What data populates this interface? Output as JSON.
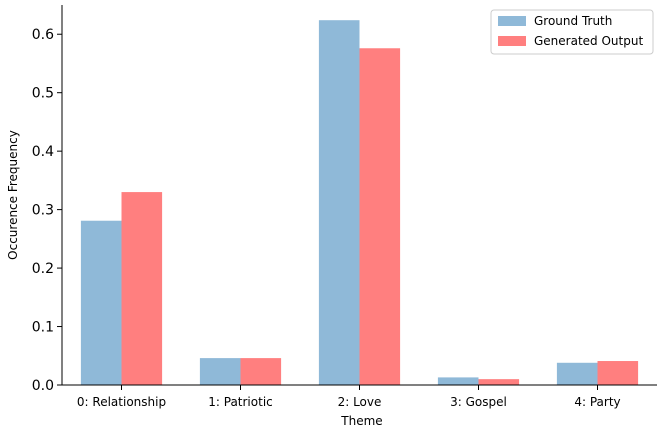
{
  "chart_data": {
    "type": "bar",
    "title": "",
    "xlabel": "Theme",
    "ylabel": "Occurence Frequency",
    "categories": [
      "0: Relationship",
      "1: Patriotic",
      "2: Love",
      "3: Gospel",
      "4: Party"
    ],
    "series": [
      {
        "name": "Ground Truth",
        "color": "#8fb9d8",
        "values": [
          0.281,
          0.046,
          0.624,
          0.013,
          0.038
        ]
      },
      {
        "name": "Generated Output",
        "color": "#ff7f7f",
        "values": [
          0.33,
          0.046,
          0.576,
          0.01,
          0.041
        ]
      }
    ],
    "ylim": [
      0,
      0.65
    ],
    "yticks": [
      "0.0",
      "0.1",
      "0.2",
      "0.3",
      "0.4",
      "0.5",
      "0.6"
    ],
    "legend_position": "top-right",
    "grid": false
  }
}
